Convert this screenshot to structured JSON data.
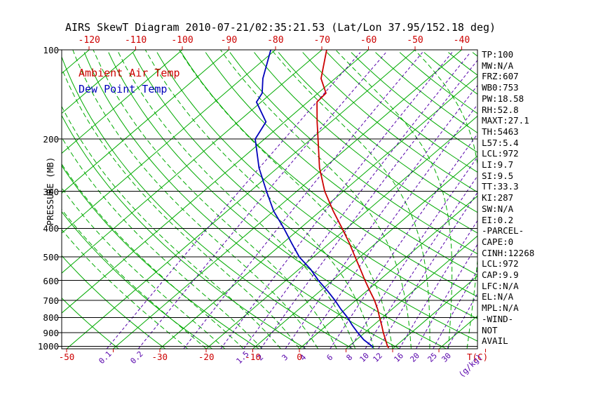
{
  "title": "AIRS SkewT Diagram 2010-07-21/02:35:21.53 (Lat/Lon 37.95/152.18 deg)",
  "legend": {
    "ambient_label": "Ambient Air Temp",
    "dewpoint_label": "Dew Point Temp"
  },
  "axes": {
    "pressure_axis_label": "PRESSURE (MB)",
    "pressure_ticks": [
      "100",
      "200",
      "300",
      "400",
      "500",
      "600",
      "700",
      "800",
      "900",
      "1000"
    ],
    "top_temperature_ticks": [
      "-120",
      "-110",
      "-100",
      "-90",
      "-80",
      "-70",
      "-60",
      "-50",
      "-40"
    ],
    "bottom_temperature_ticks": [
      "-50",
      "-30",
      "-20",
      "-10",
      "0"
    ],
    "temperature_unit_label": "T(C)",
    "mixing_ratio_tick_labels": [
      "0.1",
      "0.2",
      "1.5",
      "2",
      "3",
      "4",
      "6",
      "8",
      "10",
      "12",
      "16",
      "20",
      "25",
      "30"
    ],
    "mixing_ratio_unit_label": "(g/kg)"
  },
  "colors": {
    "temperature_red": "#cc0000",
    "dewpoint_blue": "#0000bb",
    "grid_green": "#00aa00",
    "mixing_purple": "#5500aa",
    "axis_black": "#000000"
  },
  "stats_panel": {
    "lines": [
      "TP:100",
      "MW:N/A",
      "FRZ:607",
      "WB0:753",
      "PW:18.58",
      "RH:52.8",
      "MAXT:27.1",
      "TH:5463",
      "L57:5.4",
      "LCL:972",
      "LI:9.7",
      "SI:9.5",
      "TT:33.3",
      "KI:287",
      "SW:N/A",
      "EI:0.2",
      "-PARCEL-",
      "CAPE:0",
      "CINH:12268",
      "LCL:972",
      "CAP:9.9",
      "LFC:N/A",
      "EL:N/A",
      "MPL:N/A",
      "-WIND-",
      "NOT",
      "AVAIL"
    ]
  },
  "chart_data": {
    "type": "line",
    "title": "AIRS SkewT Diagram 2010-07-21/02:35:21.53 (Lat/Lon 37.95/152.18 deg)",
    "x_axis": {
      "label": "T(C)",
      "min": -120,
      "max": 40,
      "skewed": true
    },
    "y_axis": {
      "label": "PRESSURE (MB)",
      "min": 100,
      "max": 1020,
      "scale": "log",
      "direction": "down"
    },
    "grid": {
      "isotherms_c": {
        "min": -130,
        "max": 40,
        "step": 10
      },
      "dry_adiabats_k": {
        "min": 233,
        "max": 473,
        "step": 10
      },
      "moist_adiabats_surface_c": {
        "min": -24,
        "max": 36,
        "step": 4
      },
      "mixing_ratio_g_kg": [
        0.1,
        0.2,
        0.5,
        1,
        1.5,
        2,
        3,
        4,
        6,
        8,
        10,
        12,
        16,
        20,
        25,
        30
      ]
    },
    "series": [
      {
        "name": "Ambient Air Temp",
        "color": "#cc0000",
        "pressure_mb": [
          1013,
          1000,
          950,
          900,
          850,
          800,
          750,
          700,
          650,
          600,
          550,
          500,
          450,
          400,
          350,
          300,
          250,
          200,
          175,
          150,
          140,
          125,
          100
        ],
        "temperature_c": [
          19,
          18.3,
          16.2,
          14,
          11.8,
          9.4,
          6.9,
          4,
          0.6,
          -3,
          -6.8,
          -11,
          -15.6,
          -21,
          -27.2,
          -34,
          -41,
          -48.5,
          -53,
          -58,
          -58.3,
          -63,
          -69
        ]
      },
      {
        "name": "Dew Point Temp",
        "color": "#0000bb",
        "pressure_mb": [
          1013,
          1000,
          950,
          900,
          850,
          800,
          750,
          700,
          650,
          600,
          550,
          500,
          450,
          400,
          350,
          300,
          250,
          200,
          175,
          150,
          140,
          125,
          100
        ],
        "temperature_c": [
          15.5,
          15,
          11.5,
          8.5,
          5.5,
          2.5,
          -1,
          -4.5,
          -8.5,
          -13,
          -17.5,
          -23,
          -28,
          -33.5,
          -40,
          -46.5,
          -54,
          -62,
          -64,
          -71,
          -72,
          -75.5,
          -81
        ]
      }
    ]
  }
}
